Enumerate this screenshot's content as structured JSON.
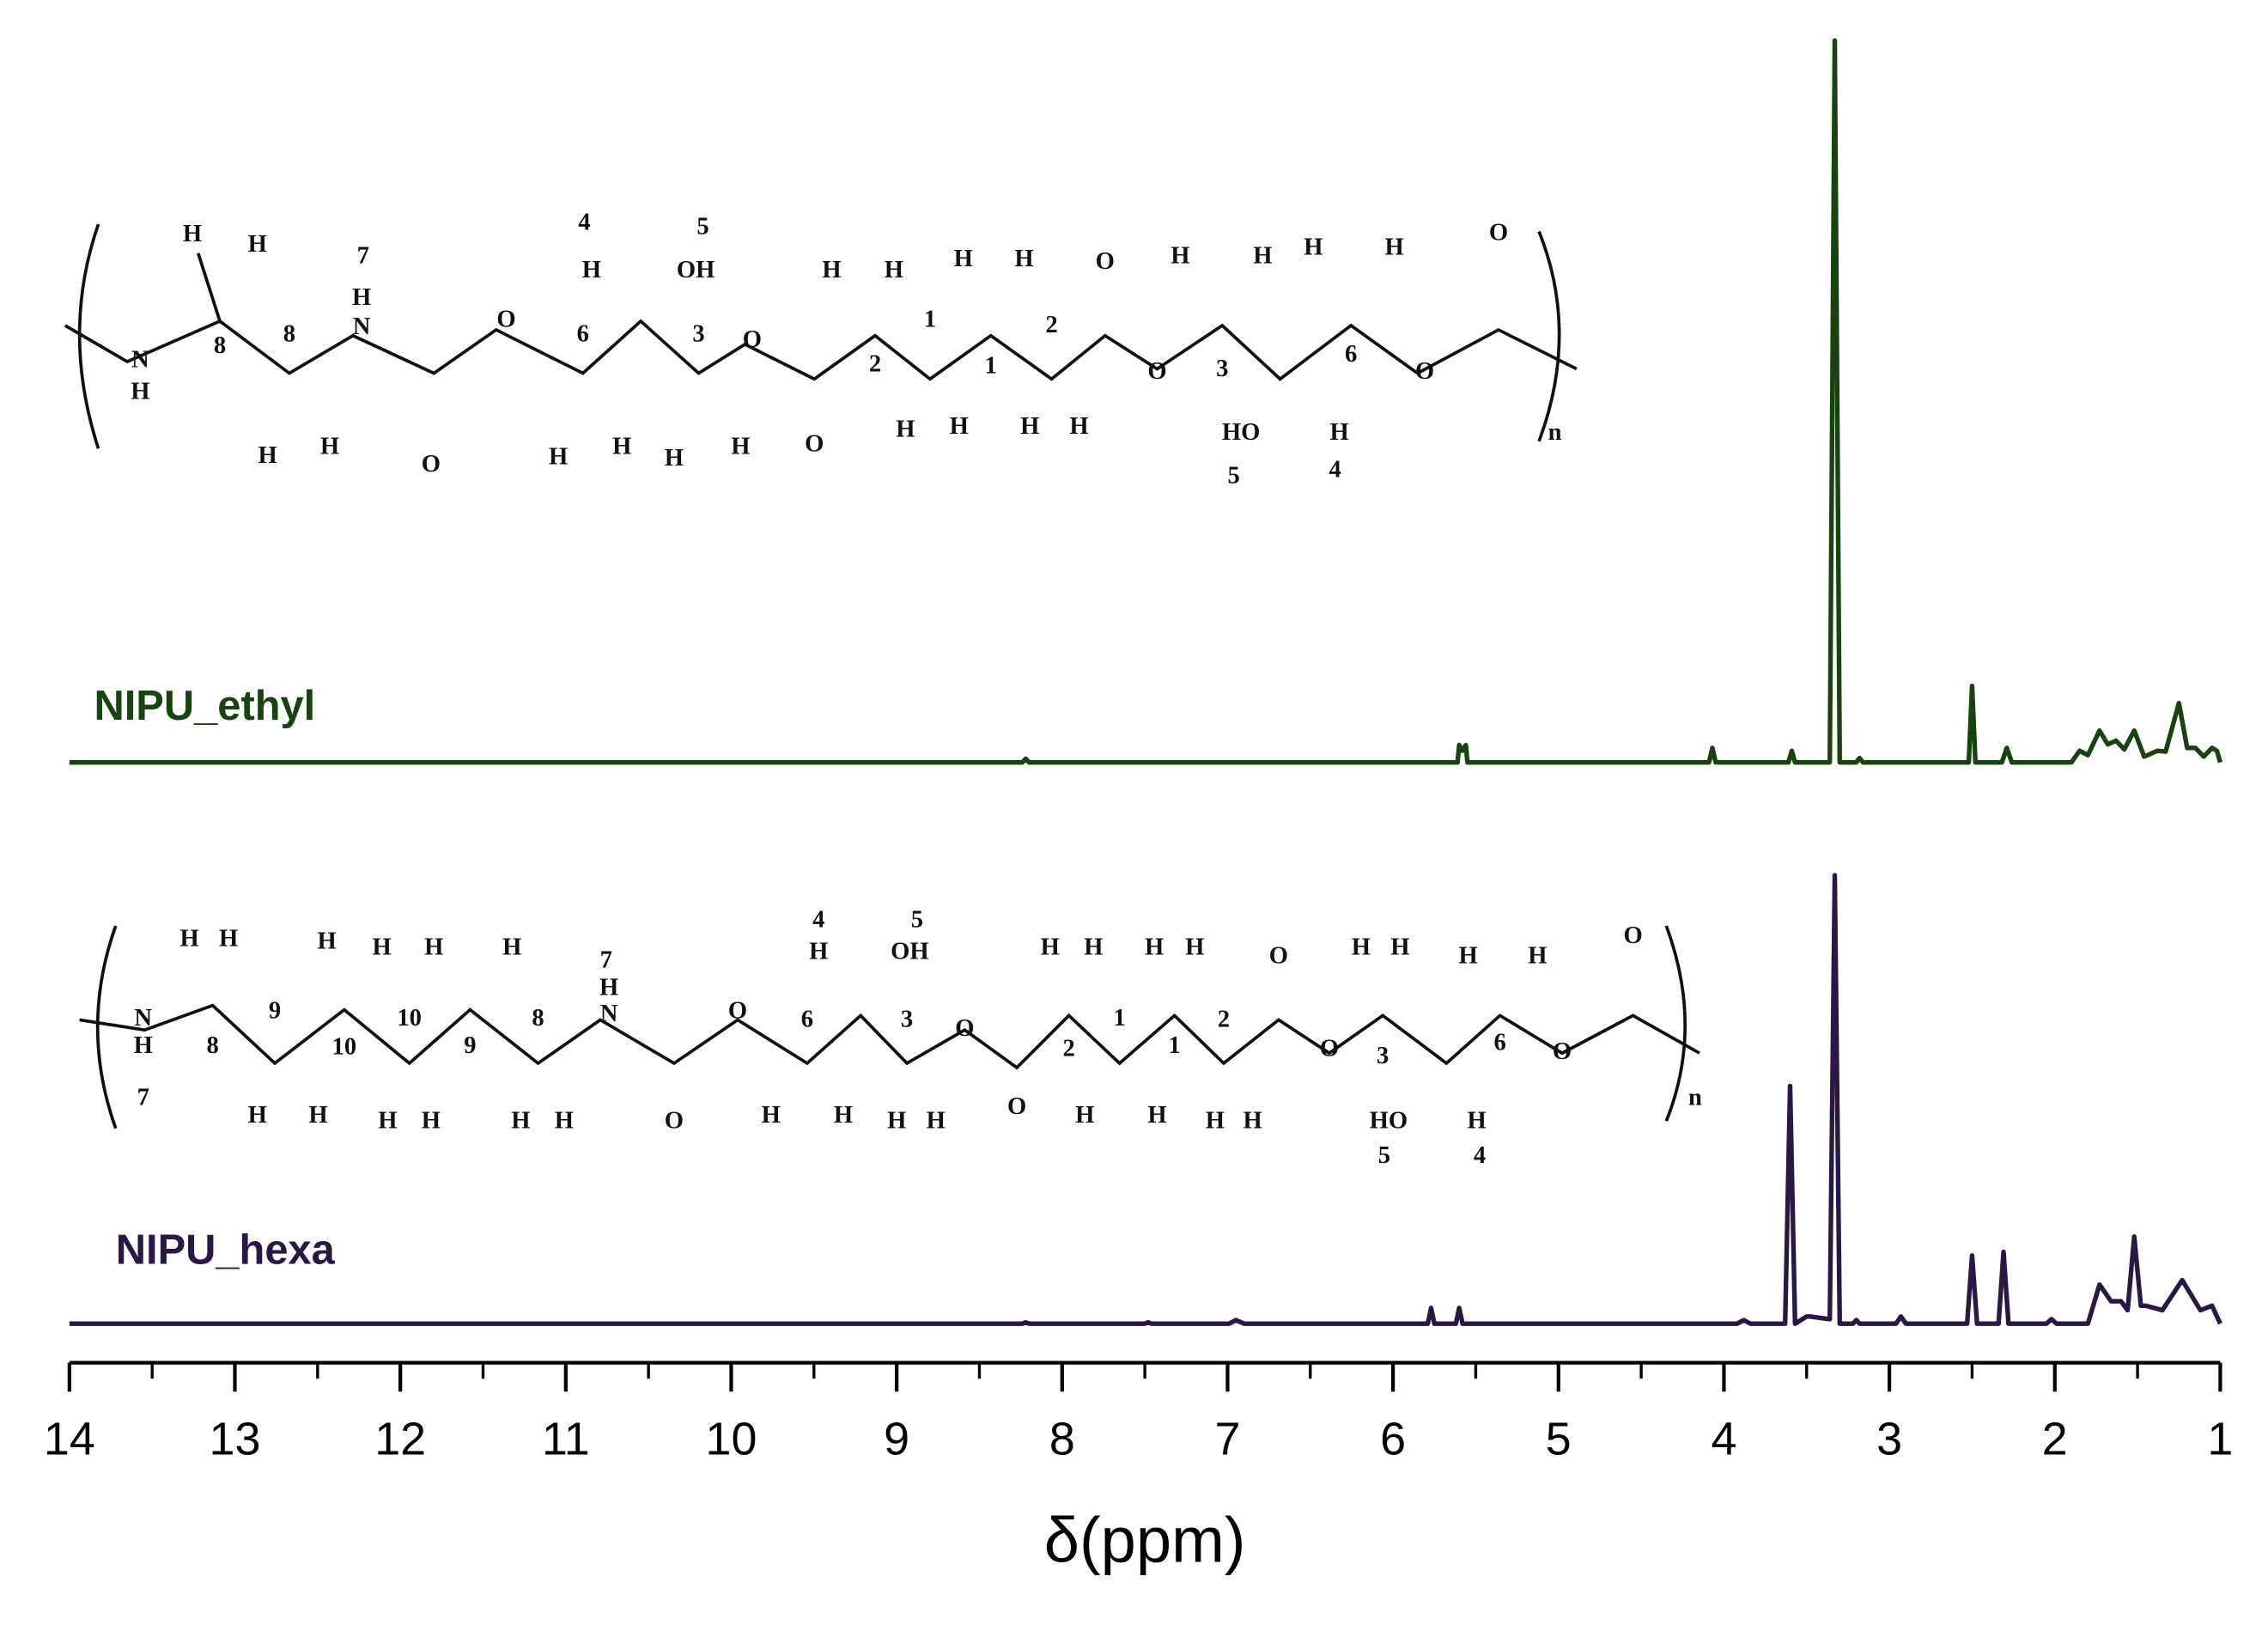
{
  "chart_data": {
    "type": "line",
    "xlabel": "δ(ppm)",
    "xlim": [
      14,
      1
    ],
    "xticks": [
      14,
      13,
      12,
      11,
      10,
      9,
      8,
      7,
      6,
      5,
      4,
      3,
      2,
      1
    ],
    "xticks_minor": [
      13.5,
      12.5,
      11.5,
      10.5,
      9.5,
      8.5,
      7.5,
      6.5,
      5.5,
      4.5,
      3.5,
      2.5,
      1.5
    ],
    "series": [
      {
        "name": "NIPU_ethyl",
        "color": "#17430f",
        "x": [
          14,
          8.24,
          8.22,
          8.2,
          5.61,
          5.6,
          5.58,
          5.56,
          5.55,
          4.09,
          4.07,
          4.05,
          3.61,
          3.59,
          3.57,
          3.36,
          3.33,
          3.3,
          3.2,
          3.18,
          3.16,
          2.52,
          2.5,
          2.48,
          2.32,
          2.29,
          2.26,
          1.9,
          1.85,
          1.8,
          1.73,
          1.68,
          1.63,
          1.58,
          1.52,
          1.46,
          1.38,
          1.33,
          1.25,
          1.2,
          1.15,
          1.1,
          1.05,
          1.02,
          1
        ],
        "values": [
          0,
          0,
          0.5,
          0,
          0,
          2.4,
          1.6,
          2.4,
          0,
          0,
          2,
          0,
          0,
          1.6,
          0,
          0,
          100,
          0,
          0,
          0.6,
          0,
          0,
          10.6,
          0,
          0,
          2,
          0,
          0,
          1.6,
          1,
          4.4,
          2.5,
          3,
          1.8,
          4.4,
          0.8,
          1.6,
          1.5,
          8.2,
          2,
          2,
          0.8,
          2,
          1.6,
          0
        ]
      },
      {
        "name": "NIPU_hexa",
        "color": "#2b1745",
        "x": [
          14,
          8.24,
          8.22,
          8.2,
          7.5,
          7.48,
          7.46,
          6.99,
          6.95,
          6.9,
          5.79,
          5.77,
          5.75,
          5.62,
          5.6,
          5.58,
          3.92,
          3.88,
          3.84,
          3.63,
          3.6,
          3.57,
          3.5,
          3.48,
          3.36,
          3.33,
          3.3,
          3.22,
          3.2,
          3.18,
          2.96,
          2.93,
          2.9,
          2.53,
          2.5,
          2.47,
          2.34,
          2.31,
          2.28,
          2.05,
          2.02,
          1.99,
          1.8,
          1.73,
          1.66,
          1.6,
          1.56,
          1.52,
          1.48,
          1.45,
          1.35,
          1.23,
          1.12,
          1.05,
          1
        ],
        "values": [
          0,
          0,
          0.3,
          0,
          0,
          0.3,
          0,
          0,
          0.8,
          0,
          0,
          3.5,
          0,
          0,
          3.5,
          0,
          0,
          0.8,
          0,
          0,
          53,
          0,
          1.6,
          1.6,
          1,
          100,
          0,
          0,
          0.8,
          0,
          0,
          1.6,
          0,
          0,
          15.2,
          0,
          0,
          16,
          0,
          0,
          1,
          0,
          0,
          8.7,
          5,
          5,
          3,
          19.4,
          4,
          4,
          3,
          9.7,
          3,
          4,
          0
        ]
      }
    ]
  },
  "structures": [
    {
      "labels": [
        "H",
        "H",
        "N",
        "H",
        "8",
        "8",
        "H",
        "H",
        "7",
        "H",
        "N",
        "O",
        "O",
        "6",
        "H",
        "H",
        "4",
        "H",
        "5",
        "OH",
        "3",
        "H",
        "H",
        "O",
        "O",
        "H",
        "H",
        "2",
        "1",
        "H",
        "H",
        "H",
        "H",
        "1",
        "2",
        "H",
        "H",
        "O",
        "O",
        "H",
        "H",
        "3",
        "H",
        "H",
        "6",
        "HO",
        "5",
        "H",
        "4",
        "O",
        "O",
        "n"
      ]
    },
    {
      "labels": [
        "H",
        "H",
        "N",
        "H",
        "7",
        "8",
        "H",
        "H",
        "9",
        "H",
        "H",
        "10",
        "H",
        "H",
        "10",
        "H",
        "H",
        "9",
        "H",
        "H",
        "8",
        "7",
        "H",
        "N",
        "O",
        "O",
        "4",
        "H",
        "5",
        "OH",
        "6",
        "3",
        "H",
        "H",
        "H",
        "H",
        "O",
        "O",
        "H",
        "H",
        "2",
        "1",
        "H",
        "H",
        "H",
        "H",
        "1",
        "2",
        "H",
        "H",
        "O",
        "O",
        "H",
        "H",
        "3",
        "HO",
        "5",
        "H",
        "4",
        "6",
        "H",
        "H",
        "O",
        "O",
        "n"
      ]
    }
  ]
}
